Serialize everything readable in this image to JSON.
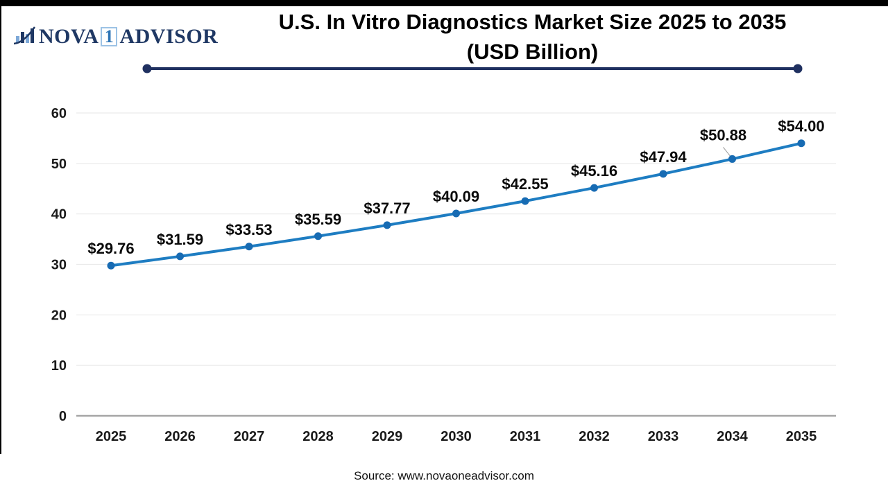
{
  "logo": {
    "icon": "bar-chart-swoosh-icon",
    "name_part1": "NOVA",
    "name_part2": "1",
    "name_part3": "ADVISOR",
    "navy": "#1F3864",
    "light_blue": "#7EA9D8"
  },
  "header": {
    "title_line1": "U.S. In Vitro Diagnostics Market Size 2025 to 2035",
    "title_line2": "(USD Billion)",
    "rule_color": "#1F3060"
  },
  "chart_data": {
    "type": "line",
    "title": "U.S. In Vitro Diagnostics Market Size 2025 to 2035 (USD Billion)",
    "categories": [
      "2025",
      "2026",
      "2027",
      "2028",
      "2029",
      "2030",
      "2031",
      "2032",
      "2033",
      "2034",
      "2035"
    ],
    "values": [
      29.76,
      31.59,
      33.53,
      35.59,
      37.77,
      40.09,
      42.55,
      45.16,
      47.94,
      50.88,
      54.0
    ],
    "value_labels": [
      "$29.76",
      "$31.59",
      "$33.53",
      "$35.59",
      "$37.77",
      "$40.09",
      "$42.55",
      "$45.16",
      "$47.94",
      "$50.88",
      "$54.00"
    ],
    "xlabel": "",
    "ylabel": "",
    "ylim": [
      0,
      60
    ],
    "yticks": [
      0,
      10,
      20,
      30,
      40,
      50,
      60
    ],
    "grid": true,
    "legend": "none",
    "line_color": "#1E7DC2",
    "marker_color": "#176BB3",
    "grid_color": "#EAEAEA",
    "axis_line_color": "#A6A6A6",
    "tick_color": "#1A1A1A",
    "label_color": "#0A0A0A",
    "label_overrides": {
      "9": {
        "dx": -13,
        "dy": -10,
        "leader": true
      }
    }
  },
  "footer": {
    "source_text": "Source: www.novaoneadvisor.com"
  }
}
